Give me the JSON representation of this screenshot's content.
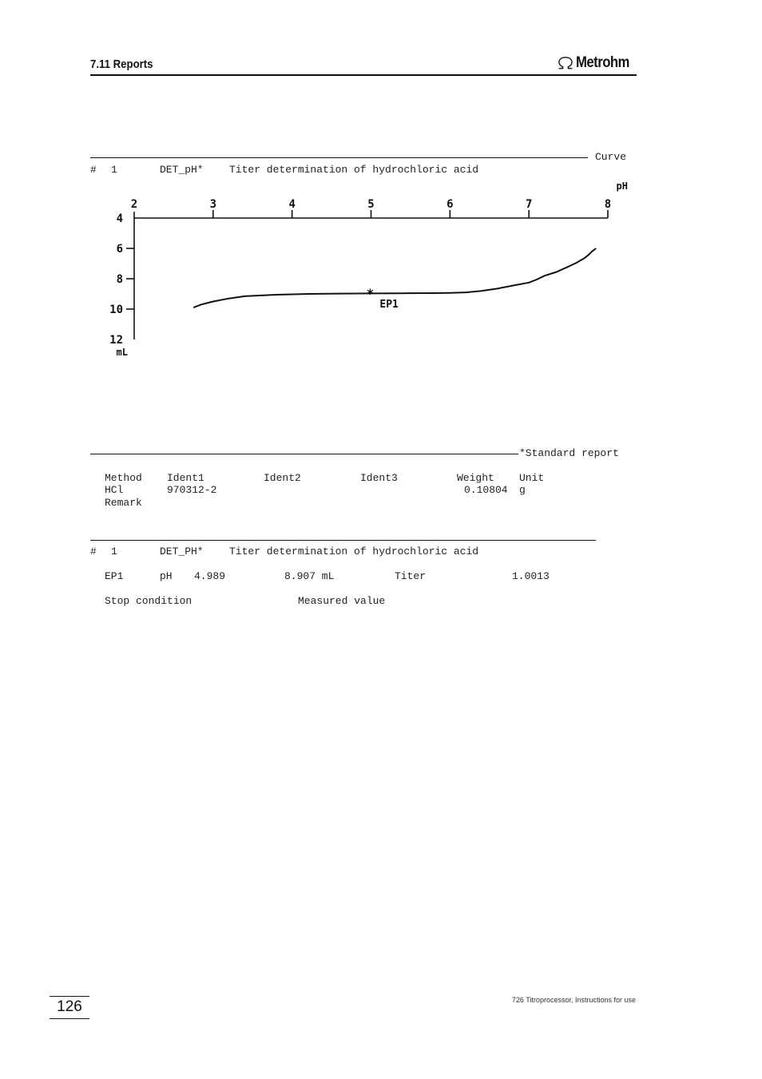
{
  "header": {
    "section_title": "7.11 Reports",
    "brand": "Metrohm",
    "brand_icon": "omega-logo-icon"
  },
  "curve_report": {
    "section_label": "Curve",
    "info": {
      "number_label": "#",
      "number": "1",
      "method": "DET_pH*",
      "description": "Titer determination of hydrochloric acid"
    }
  },
  "chart_data": {
    "type": "line",
    "title": "",
    "xlabel": "pH",
    "ylabel": "mL",
    "xlim": [
      2,
      8
    ],
    "ylim": [
      4,
      12
    ],
    "y_inverted": true,
    "grid": false,
    "x_ticks": [
      2,
      3,
      4,
      5,
      6,
      7,
      8
    ],
    "y_ticks": [
      4,
      6,
      8,
      10,
      12
    ],
    "series": [
      {
        "x": [
          2.75,
          2.85,
          3.0,
          3.2,
          3.4,
          3.8,
          4.2,
          4.6,
          5.0,
          5.4,
          5.8,
          6.0,
          6.2,
          6.4,
          6.6,
          6.8,
          7.0,
          7.1,
          7.2,
          7.35,
          7.5,
          7.6,
          7.7,
          7.75,
          7.8,
          7.85
        ],
        "y": [
          9.9,
          9.7,
          9.5,
          9.3,
          9.15,
          9.05,
          9.0,
          8.98,
          8.97,
          8.96,
          8.95,
          8.93,
          8.9,
          8.8,
          8.65,
          8.45,
          8.25,
          8.05,
          7.8,
          7.55,
          7.2,
          6.95,
          6.65,
          6.45,
          6.2,
          6.0
        ]
      }
    ],
    "annotations": [
      {
        "label": "EP1",
        "marker": "*",
        "x": 4.989,
        "y": 8.907
      }
    ]
  },
  "standard_report": {
    "section_label": "*Standard report",
    "columns": [
      "Method",
      "Ident1",
      "Ident2",
      "Ident3",
      "Weight",
      "Unit"
    ],
    "values": {
      "method": "HCl",
      "ident1": "970312-2",
      "weight": "0.10804",
      "unit": "g"
    },
    "remark_label": "Remark"
  },
  "result_report": {
    "info": {
      "number_label": "#",
      "number": "1",
      "method": "DET_PH*",
      "description": "Titer determination of hydrochloric acid"
    },
    "endpoint": {
      "label": "EP1",
      "ph_label": "pH",
      "ph_value": "4.989",
      "volume": "8.907 mL",
      "titer_label": "Titer",
      "titer_value": "1.0013"
    },
    "stop": {
      "label": "Stop condition",
      "value": "Measured value"
    }
  },
  "footer": {
    "page_number": "126",
    "document_title": "726 Titroprocessor, Instructions for use"
  }
}
